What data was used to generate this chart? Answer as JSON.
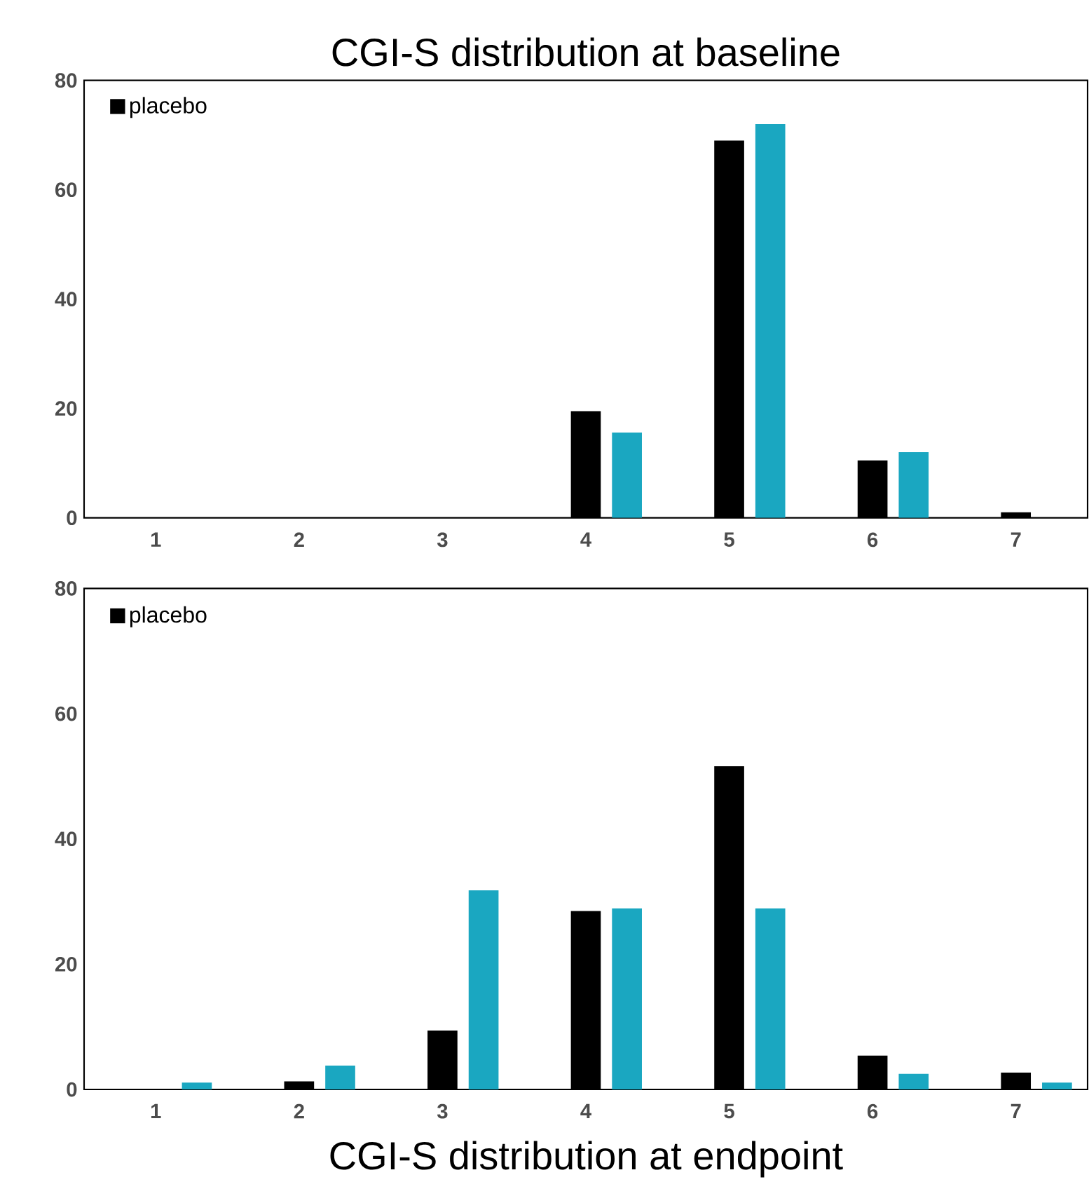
{
  "chart_data": [
    {
      "type": "bar",
      "title": "CGI-S distribution at baseline",
      "categories": [
        "1",
        "2",
        "3",
        "4",
        "5",
        "6",
        "7"
      ],
      "series": [
        {
          "name": "placebo",
          "color": "#000000",
          "values": [
            0,
            0,
            0,
            19.5,
            69,
            10.5,
            1
          ]
        },
        {
          "color": "#1aa7c1",
          "values": [
            0,
            0,
            0,
            15.6,
            72,
            12,
            0
          ]
        }
      ],
      "ylim": [
        0,
        80
      ],
      "yticks": [
        0,
        20,
        40,
        60,
        80
      ],
      "legend": "top left"
    },
    {
      "type": "bar",
      "title": "CGI-S distribution at endpoint",
      "categories": [
        "1",
        "2",
        "3",
        "4",
        "5",
        "6",
        "7"
      ],
      "series": [
        {
          "name": "placebo",
          "color": "#000000",
          "values": [
            0,
            1.3,
            9.4,
            28.5,
            51.6,
            5.4,
            2.7
          ]
        },
        {
          "color": "#1aa7c1",
          "values": [
            1.1,
            3.8,
            31.8,
            28.9,
            28.9,
            2.5,
            1.1
          ]
        }
      ],
      "ylim": [
        0,
        80
      ],
      "yticks": [
        0,
        20,
        40,
        60,
        80
      ],
      "legend": "top left"
    }
  ]
}
